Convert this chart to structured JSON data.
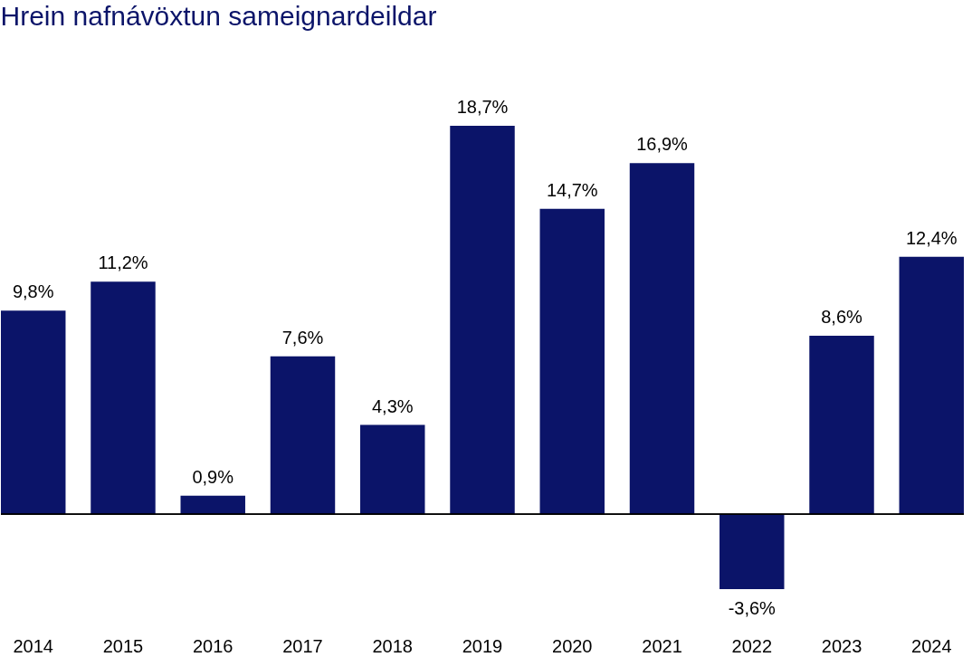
{
  "chart_data": {
    "type": "bar",
    "title": "Hrein nafnávöxtun sameignardeildar",
    "categories": [
      "2014",
      "2015",
      "2016",
      "2017",
      "2018",
      "2019",
      "2020",
      "2021",
      "2022",
      "2023",
      "2024"
    ],
    "values": [
      9.8,
      11.2,
      0.9,
      7.6,
      4.3,
      18.7,
      14.7,
      16.9,
      -3.6,
      8.6,
      12.4
    ],
    "value_labels": [
      "9,8%",
      "11,2%",
      "0,9%",
      "7,6%",
      "4,3%",
      "18,7%",
      "14,7%",
      "16,9%",
      "-3,6%",
      "8,6%",
      "12,4%"
    ],
    "color": "#0b1469",
    "tick_labels": "x",
    "grid": false
  }
}
